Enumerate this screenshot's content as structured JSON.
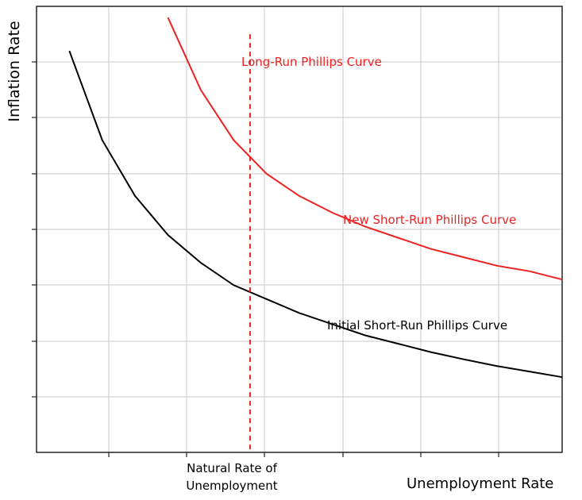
{
  "chart_data": {
    "type": "line",
    "title": "",
    "xlabel": "Unemployment Rate",
    "ylabel": "Inflation Rate",
    "xlim": [
      0,
      16
    ],
    "ylim": [
      0,
      8
    ],
    "grid": true,
    "x_tick_count": 6,
    "y_tick_count": 8,
    "series": [
      {
        "name": "Initial Short-Run Phillips Curve",
        "color": "#000000",
        "points": [
          [
            1.0,
            7.2
          ],
          [
            2.0,
            5.6
          ],
          [
            3.0,
            4.6
          ],
          [
            4.0,
            3.9
          ],
          [
            5.0,
            3.4
          ],
          [
            6.0,
            3.0
          ],
          [
            7.0,
            2.75
          ],
          [
            8.0,
            2.5
          ],
          [
            9.0,
            2.3
          ],
          [
            10.0,
            2.1
          ],
          [
            11.0,
            1.95
          ],
          [
            12.0,
            1.8
          ],
          [
            13.0,
            1.67
          ],
          [
            14.0,
            1.55
          ],
          [
            15.0,
            1.45
          ],
          [
            16.0,
            1.35
          ]
        ]
      },
      {
        "name": "New Short-Run Phillips Curve",
        "color": "#ee2222",
        "points": [
          [
            4.0,
            7.8
          ],
          [
            5.0,
            6.5
          ],
          [
            6.0,
            5.6
          ],
          [
            7.0,
            5.0
          ],
          [
            8.0,
            4.6
          ],
          [
            9.0,
            4.3
          ],
          [
            10.0,
            4.05
          ],
          [
            11.0,
            3.85
          ],
          [
            12.0,
            3.65
          ],
          [
            13.0,
            3.5
          ],
          [
            14.0,
            3.35
          ],
          [
            15.0,
            3.25
          ],
          [
            16.0,
            3.1
          ]
        ]
      }
    ],
    "vertical_line": {
      "name": "Long-Run Phillips Curve",
      "x": 6.5,
      "y_range": [
        0,
        7.5
      ],
      "color": "#ee2222",
      "style": "dashed"
    },
    "annotations": {
      "long_run": "Long-Run Phillips Curve",
      "new_short_run": "New Short-Run Phillips Curve",
      "initial_short_run": "Initial Short-Run Phillips Curve",
      "natural_rate_line1": "Natural Rate of",
      "natural_rate_line2": "Unemployment"
    }
  }
}
